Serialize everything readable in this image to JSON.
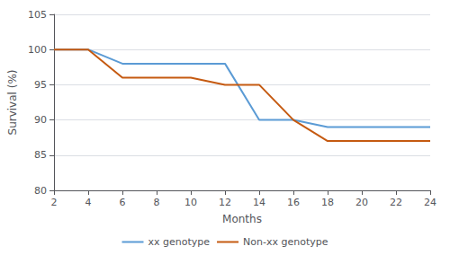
{
  "chart_data": {
    "type": "line",
    "xlabel": "Months",
    "ylabel": "Survival (%)",
    "x": [
      2,
      4,
      6,
      8,
      10,
      12,
      14,
      16,
      18,
      20,
      22,
      24
    ],
    "series": [
      {
        "name": "xx genotype",
        "color": "#5B9BD5",
        "values": [
          100,
          100,
          98,
          98,
          98,
          98,
          90,
          90,
          89,
          89,
          89,
          89
        ]
      },
      {
        "name": "Non-xx genotype",
        "color": "#C55A11",
        "values": [
          100,
          100,
          96,
          96,
          96,
          95,
          95,
          90,
          87,
          87,
          87,
          87
        ]
      }
    ],
    "xlim": [
      2,
      24
    ],
    "ylim": [
      80,
      105
    ],
    "xticks": [
      2,
      4,
      6,
      8,
      10,
      12,
      14,
      16,
      18,
      20,
      22,
      24
    ],
    "yticks": [
      80,
      85,
      90,
      95,
      100,
      105
    ],
    "grid": true,
    "legend": "bottom"
  }
}
